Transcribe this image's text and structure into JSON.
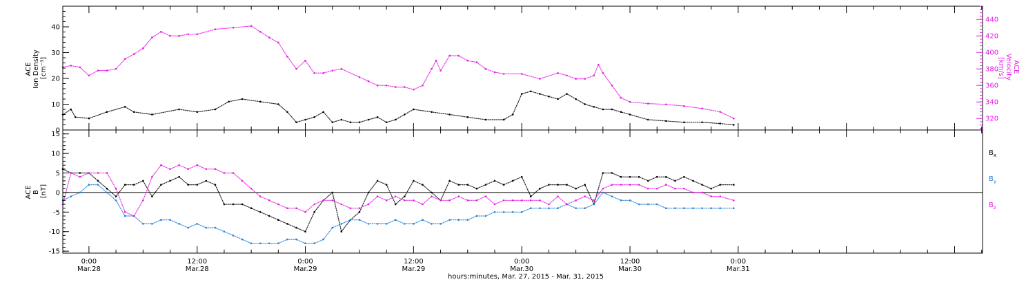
{
  "colors": {
    "black": "#000000",
    "magenta": "#e619e6",
    "blue": "#1f7fd6"
  },
  "time_axis": {
    "title": "hours:minutes, Mar. 27, 2015 - Mar. 31, 2015",
    "range_hours": [
      -2.9,
      99.1
    ],
    "ticks": [
      {
        "hours": 0,
        "time": "0:00",
        "date": "Mar.28"
      },
      {
        "hours": 12,
        "time": "12:00",
        "date": "Mar.28"
      },
      {
        "hours": 24,
        "time": "0:00",
        "date": "Mar.29"
      },
      {
        "hours": 36,
        "time": "12:00",
        "date": "Mar.29"
      },
      {
        "hours": 48,
        "time": "0:00",
        "date": "Mar.30"
      },
      {
        "hours": 60,
        "time": "12:00",
        "date": "Mar.30"
      },
      {
        "hours": 72,
        "time": "0:00",
        "date": "Mar.31"
      }
    ]
  },
  "chart_data": [
    {
      "type": "scatter",
      "panel": "top",
      "ylabel_lines": [
        "ACE",
        "Ion Density",
        "[cm⁻³]"
      ],
      "ylim": [
        0,
        48
      ],
      "yticks": [
        0,
        10,
        20,
        30,
        40
      ],
      "y2label_lines": [
        "ACE",
        "Velocity",
        "[km/s]"
      ],
      "y2lim": [
        306,
        456
      ],
      "y2ticks": [
        320,
        340,
        360,
        380,
        400,
        420,
        440
      ],
      "series": [
        {
          "axis": "left",
          "color": "#000000",
          "x": [
            -2.9,
            -2,
            -1.5,
            0,
            2,
            4,
            5,
            7,
            10,
            12,
            14,
            15.5,
            17,
            19,
            21,
            22,
            23,
            24,
            25,
            26,
            27,
            28,
            29,
            30,
            31,
            32,
            33,
            34,
            35,
            36,
            38,
            40,
            42,
            44,
            46,
            47,
            48,
            49,
            50,
            51,
            52,
            53,
            54,
            55,
            56,
            57,
            58,
            59,
            60,
            62,
            64,
            66,
            68,
            70,
            71.5
          ],
          "values": [
            6,
            8,
            5,
            4.5,
            7,
            9,
            7,
            6,
            8,
            7,
            8,
            11,
            12,
            11,
            10,
            7,
            3,
            4,
            5,
            7,
            3,
            4,
            3,
            3,
            4,
            5,
            3,
            4,
            6,
            8,
            7,
            6,
            5,
            4,
            4,
            6,
            14,
            15,
            14,
            13,
            12,
            14,
            12,
            10,
            9,
            8,
            8,
            7,
            6,
            4,
            3.5,
            3,
            3,
            2.5,
            2
          ]
        },
        {
          "axis": "right",
          "color": "#e619e6",
          "x": [
            -2.9,
            -2,
            -1,
            0,
            1,
            2,
            3,
            4,
            5,
            6,
            7,
            8,
            9,
            10,
            11,
            12,
            14,
            16,
            18,
            19,
            20,
            21,
            22,
            23,
            24,
            25,
            26,
            27,
            28,
            30,
            31,
            32,
            33,
            34,
            35,
            36,
            37,
            38,
            38.5,
            39,
            40,
            41,
            42,
            43,
            44,
            45,
            46,
            48,
            50,
            52,
            53,
            54,
            55,
            56,
            56.5,
            57,
            58,
            59,
            60,
            62,
            64,
            66,
            68,
            70,
            71.5
          ],
          "values": [
            382,
            384,
            382,
            372,
            378,
            378,
            380,
            392,
            398,
            405,
            418,
            425,
            420,
            420,
            422,
            422,
            428,
            430,
            432,
            425,
            418,
            412,
            395,
            380,
            390,
            375,
            375,
            378,
            380,
            370,
            365,
            360,
            360,
            358,
            358,
            355,
            360,
            380,
            390,
            378,
            396,
            396,
            390,
            388,
            380,
            376,
            374,
            374,
            368,
            375,
            372,
            368,
            368,
            372,
            385,
            375,
            360,
            345,
            340,
            338,
            337,
            335,
            332,
            328,
            320
          ]
        }
      ]
    },
    {
      "type": "scatter",
      "panel": "bottom",
      "ylabel_lines": [
        "ACE",
        "B",
        "[nT]"
      ],
      "ylim": [
        -15.5,
        16
      ],
      "yticks": [
        -15,
        -10,
        -5,
        0,
        5,
        10,
        15
      ],
      "zero_line": true,
      "series": [
        {
          "name": "Bx",
          "legend_main": "B",
          "legend_sub": "x",
          "color": "#000000",
          "x": [
            -2.9,
            -2,
            -1,
            0,
            1,
            2,
            3,
            4,
            5,
            6,
            7,
            8,
            9,
            10,
            11,
            12,
            13,
            14,
            15,
            16,
            17,
            18,
            19,
            20,
            21,
            22,
            23,
            24,
            25,
            26,
            27,
            28,
            29,
            30,
            31,
            32,
            33,
            34,
            35,
            36,
            37,
            38,
            39,
            40,
            41,
            42,
            43,
            44,
            45,
            46,
            47,
            48,
            49,
            50,
            51,
            52,
            53,
            54,
            55,
            56,
            57,
            58,
            59,
            60,
            61,
            62,
            63,
            64,
            65,
            66,
            67,
            68,
            69,
            70,
            71.5
          ],
          "values": [
            6,
            5,
            5,
            5,
            3,
            1,
            -1,
            2,
            2,
            3,
            -1,
            2,
            3,
            4,
            2,
            2,
            3,
            2,
            -3,
            -3,
            -3,
            -4,
            -5,
            -6,
            -7,
            -8,
            -9,
            -10,
            -5,
            -2,
            0,
            -10,
            -7,
            -5,
            0,
            3,
            2,
            -3,
            -1,
            3,
            2,
            0,
            -2,
            3,
            2,
            2,
            1,
            2,
            3,
            2,
            3,
            4,
            -1,
            1,
            2,
            2,
            2,
            1,
            2,
            -3,
            5,
            5,
            4,
            4,
            4,
            3,
            4,
            4,
            3,
            4,
            3,
            2,
            1,
            2,
            2
          ]
        },
        {
          "name": "By",
          "legend_main": "B",
          "legend_sub": "y",
          "color": "#1f7fd6",
          "x": [
            -2.9,
            -2,
            -1,
            0,
            1,
            2,
            3,
            4,
            5,
            6,
            7,
            8,
            9,
            10,
            11,
            12,
            13,
            14,
            15,
            16,
            17,
            18,
            19,
            20,
            21,
            22,
            23,
            24,
            25,
            26,
            27,
            28,
            29,
            30,
            31,
            32,
            33,
            34,
            35,
            36,
            37,
            38,
            39,
            40,
            41,
            42,
            43,
            44,
            45,
            46,
            47,
            48,
            49,
            50,
            51,
            52,
            53,
            54,
            55,
            56,
            57,
            58,
            59,
            60,
            61,
            62,
            63,
            64,
            65,
            66,
            67,
            68,
            69,
            70,
            71.5
          ],
          "values": [
            -2,
            -1,
            0,
            2,
            2,
            0,
            -2,
            -6,
            -6,
            -8,
            -8,
            -7,
            -7,
            -8,
            -9,
            -8,
            -9,
            -9,
            -10,
            -11,
            -12,
            -13,
            -13,
            -13,
            -13,
            -12,
            -12,
            -13,
            -13,
            -12,
            -9,
            -8,
            -7,
            -7,
            -8,
            -8,
            -8,
            -7,
            -8,
            -8,
            -7,
            -8,
            -8,
            -7,
            -7,
            -7,
            -6,
            -6,
            -5,
            -5,
            -5,
            -5,
            -4,
            -4,
            -4,
            -4,
            -3,
            -4,
            -4,
            -3,
            0,
            -1,
            -2,
            -2,
            -3,
            -3,
            -3,
            -4,
            -4,
            -4,
            -4,
            -4,
            -4,
            -4,
            -4
          ]
        },
        {
          "name": "Bz",
          "legend_main": "B",
          "legend_sub": "z",
          "color": "#e619e6",
          "x": [
            -2.9,
            -2,
            -1,
            0,
            1,
            2,
            3,
            4,
            5,
            6,
            7,
            8,
            9,
            10,
            11,
            12,
            13,
            14,
            15,
            16,
            17,
            18,
            19,
            20,
            21,
            22,
            23,
            24,
            25,
            26,
            27,
            28,
            29,
            30,
            31,
            32,
            33,
            34,
            35,
            36,
            37,
            38,
            39,
            40,
            41,
            42,
            43,
            44,
            45,
            46,
            47,
            48,
            49,
            50,
            51,
            52,
            53,
            54,
            55,
            56,
            57,
            58,
            59,
            60,
            61,
            62,
            63,
            64,
            65,
            66,
            67,
            68,
            69,
            70,
            71.5
          ],
          "values": [
            -3,
            5,
            4,
            5,
            5,
            5,
            1,
            -5,
            -6,
            -2,
            4,
            7,
            6,
            7,
            6,
            7,
            6,
            6,
            5,
            5,
            3,
            1,
            -1,
            -2,
            -3,
            -4,
            -4,
            -5,
            -3,
            -2,
            -2,
            -3,
            -4,
            -4,
            -3,
            -1,
            -2,
            -1,
            -2,
            -2,
            -3,
            -1,
            -2,
            -2,
            -1,
            -2,
            -2,
            -1,
            -3,
            -2,
            -2,
            -2,
            -2,
            -2,
            -3,
            -1,
            -3,
            -2,
            -1,
            -2,
            1,
            2,
            2,
            2,
            2,
            1,
            1,
            2,
            1,
            1,
            0,
            0,
            -1,
            -1,
            -2
          ]
        }
      ]
    }
  ]
}
